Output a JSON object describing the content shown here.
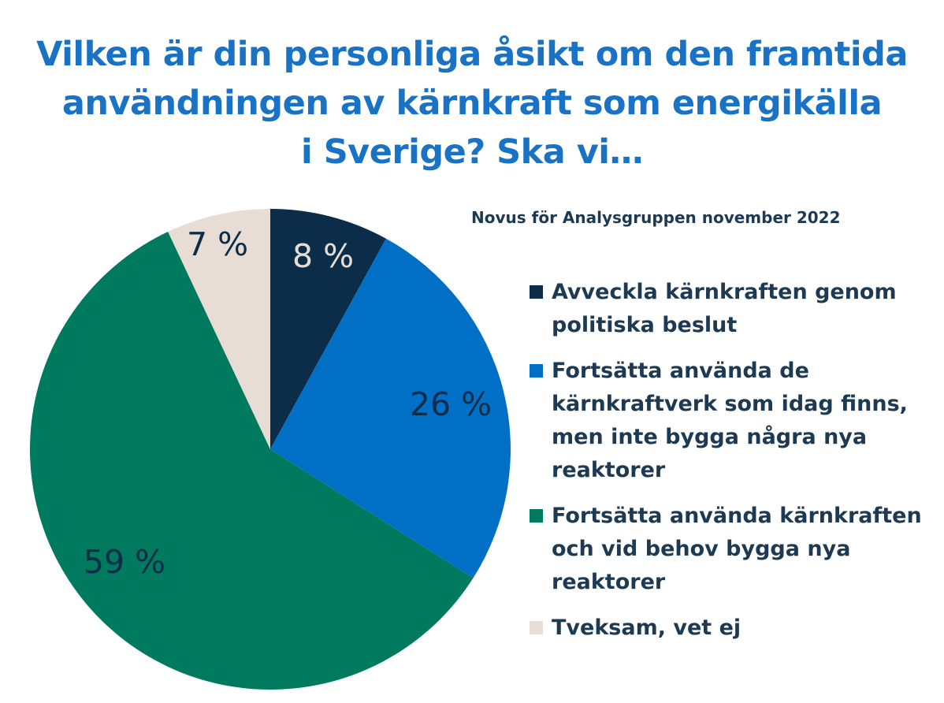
{
  "title_lines": [
    "Vilken är din personliga åsikt om den framtida",
    "användningen av kärnkraft som energikälla",
    "i Sverige? Ska vi…"
  ],
  "source": "Novus för Analysgruppen november 2022",
  "chart_data": {
    "type": "pie",
    "title": "Vilken är din personliga åsikt om den framtida användningen av kärnkraft som energikälla i Sverige? Ska vi…",
    "legend_position": "right",
    "slices": [
      {
        "label": "Avveckla kärnkraften genom politiska beslut",
        "value": 8,
        "display": "8 %",
        "color": "#0b2d4a",
        "text_color": "#e8ddd4"
      },
      {
        "label": "Fortsätta använda de kärnkraftverk som idag finns, men inte bygga några nya reaktorer",
        "value": 26,
        "display": "26 %",
        "color": "#0070c6",
        "text_color": "#0b2d4a"
      },
      {
        "label": "Fortsätta använda kärnkraften och vid behov bygga nya reaktorer",
        "value": 59,
        "display": "59 %",
        "color": "#007a5e",
        "text_color": "#0b2d4a"
      },
      {
        "label": "Tveksam, vet ej",
        "value": 7,
        "display": "7 %",
        "color": "#e8ddd4",
        "text_color": "#0b2d4a"
      }
    ]
  }
}
